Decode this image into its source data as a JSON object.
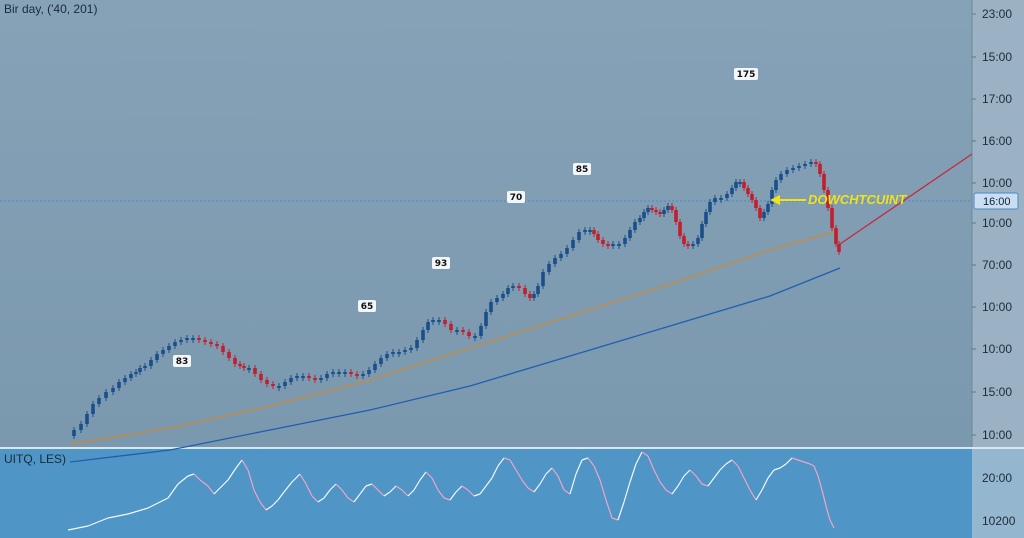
{
  "chart_data": [
    {
      "type": "candlestick",
      "title": "Bir day, ('40, 201)",
      "y_ticks": [
        "23:00",
        "15:00",
        "17:00",
        "16:00",
        "10:00",
        "10:00",
        "70:00",
        "10:00",
        "10:00",
        "15:00",
        "10:00"
      ],
      "current_price_label": "16:00",
      "callout": "DOWCHTCUINT",
      "peak_labels": [
        "83",
        "65",
        "93",
        "70",
        "85",
        "175"
      ],
      "price_path": [
        [
          0,
          8
        ],
        [
          8,
          14
        ],
        [
          14,
          20
        ],
        [
          20,
          30
        ],
        [
          26,
          40
        ],
        [
          32,
          46
        ],
        [
          40,
          52
        ],
        [
          46,
          56
        ],
        [
          52,
          62
        ],
        [
          58,
          66
        ],
        [
          64,
          70
        ],
        [
          68,
          72
        ],
        [
          72,
          76
        ],
        [
          78,
          78
        ],
        [
          84,
          84
        ],
        [
          90,
          90
        ],
        [
          96,
          94
        ],
        [
          102,
          98
        ],
        [
          108,
          102
        ],
        [
          114,
          104
        ],
        [
          120,
          106
        ],
        [
          126,
          106
        ],
        [
          132,
          104
        ],
        [
          138,
          102
        ],
        [
          144,
          100
        ],
        [
          150,
          98
        ],
        [
          156,
          92
        ],
        [
          162,
          86
        ],
        [
          168,
          80
        ],
        [
          172,
          78
        ],
        [
          176,
          76
        ],
        [
          182,
          76
        ],
        [
          188,
          70
        ],
        [
          194,
          64
        ],
        [
          200,
          60
        ],
        [
          206,
          58
        ],
        [
          212,
          58
        ],
        [
          218,
          62
        ],
        [
          224,
          66
        ],
        [
          230,
          68
        ],
        [
          236,
          68
        ],
        [
          242,
          66
        ],
        [
          248,
          64
        ],
        [
          254,
          66
        ],
        [
          260,
          70
        ],
        [
          266,
          72
        ],
        [
          272,
          72
        ],
        [
          278,
          72
        ],
        [
          284,
          70
        ],
        [
          290,
          68
        ],
        [
          296,
          70
        ],
        [
          302,
          74
        ],
        [
          308,
          80
        ],
        [
          314,
          86
        ],
        [
          320,
          90
        ],
        [
          326,
          92
        ],
        [
          332,
          92
        ],
        [
          338,
          94
        ],
        [
          344,
          96
        ],
        [
          350,
          104
        ],
        [
          356,
          114
        ],
        [
          360,
          122
        ],
        [
          366,
          124
        ],
        [
          372,
          124
        ],
        [
          378,
          120
        ],
        [
          384,
          114
        ],
        [
          390,
          114
        ],
        [
          396,
          112
        ],
        [
          402,
          108
        ],
        [
          408,
          108
        ],
        [
          414,
          118
        ],
        [
          418,
          132
        ],
        [
          424,
          142
        ],
        [
          430,
          146
        ],
        [
          436,
          150
        ],
        [
          440,
          156
        ],
        [
          446,
          158
        ],
        [
          452,
          156
        ],
        [
          458,
          150
        ],
        [
          462,
          146
        ],
        [
          466,
          150
        ],
        [
          470,
          158
        ],
        [
          476,
          172
        ],
        [
          482,
          180
        ],
        [
          488,
          186
        ],
        [
          494,
          190
        ],
        [
          500,
          196
        ],
        [
          506,
          204
        ],
        [
          512,
          212
        ],
        [
          518,
          214
        ],
        [
          522,
          214
        ],
        [
          526,
          210
        ],
        [
          530,
          204
        ],
        [
          536,
          200
        ],
        [
          540,
          198
        ],
        [
          546,
          200
        ],
        [
          552,
          200
        ],
        [
          558,
          206
        ],
        [
          562,
          214
        ],
        [
          568,
          222
        ],
        [
          572,
          226
        ],
        [
          576,
          232
        ],
        [
          580,
          236
        ],
        [
          584,
          234
        ],
        [
          588,
          232
        ],
        [
          592,
          230
        ],
        [
          596,
          234
        ],
        [
          600,
          238
        ],
        [
          604,
          234
        ],
        [
          608,
          222
        ],
        [
          612,
          208
        ],
        [
          616,
          200
        ],
        [
          620,
          198
        ],
        [
          626,
          200
        ],
        [
          630,
          206
        ],
        [
          634,
          220
        ],
        [
          638,
          232
        ],
        [
          642,
          242
        ],
        [
          648,
          246
        ],
        [
          654,
          246
        ],
        [
          660,
          250
        ],
        [
          664,
          256
        ],
        [
          668,
          262
        ],
        [
          672,
          262
        ],
        [
          676,
          256
        ],
        [
          680,
          250
        ],
        [
          684,
          244
        ],
        [
          688,
          236
        ],
        [
          692,
          226
        ],
        [
          696,
          232
        ],
        [
          700,
          240
        ],
        [
          704,
          254
        ],
        [
          708,
          264
        ],
        [
          714,
          270
        ],
        [
          720,
          274
        ],
        [
          726,
          276
        ],
        [
          732,
          278
        ],
        [
          738,
          280
        ],
        [
          744,
          282
        ],
        [
          748,
          280
        ],
        [
          752,
          270
        ],
        [
          756,
          254
        ],
        [
          760,
          236
        ],
        [
          764,
          216
        ],
        [
          768,
          200
        ],
        [
          770,
          192
        ]
      ],
      "ma_orange": [
        [
          0,
          0
        ],
        [
          100,
          16
        ],
        [
          200,
          38
        ],
        [
          300,
          64
        ],
        [
          400,
          96
        ],
        [
          500,
          128
        ],
        [
          600,
          160
        ],
        [
          700,
          194
        ],
        [
          770,
          214
        ]
      ],
      "ma_blue": [
        [
          0,
          -18
        ],
        [
          100,
          -6
        ],
        [
          200,
          14
        ],
        [
          300,
          34
        ],
        [
          400,
          58
        ],
        [
          500,
          88
        ],
        [
          600,
          118
        ],
        [
          700,
          148
        ],
        [
          770,
          176
        ]
      ],
      "trendline_red": [
        [
          770,
          200
        ],
        [
          972,
          290
        ]
      ],
      "oscillator": {
        "label": "UITQ, LES)",
        "y_ticks": [
          "20:00",
          "10200"
        ],
        "path": [
          [
            0,
            0
          ],
          [
            20,
            4
          ],
          [
            40,
            12
          ],
          [
            60,
            16
          ],
          [
            80,
            22
          ],
          [
            100,
            32
          ],
          [
            110,
            46
          ],
          [
            120,
            54
          ],
          [
            126,
            56
          ],
          [
            132,
            50
          ],
          [
            140,
            44
          ],
          [
            146,
            36
          ],
          [
            152,
            42
          ],
          [
            160,
            50
          ],
          [
            168,
            62
          ],
          [
            174,
            70
          ],
          [
            180,
            60
          ],
          [
            186,
            40
          ],
          [
            192,
            28
          ],
          [
            198,
            20
          ],
          [
            204,
            24
          ],
          [
            210,
            30
          ],
          [
            216,
            38
          ],
          [
            224,
            48
          ],
          [
            232,
            56
          ],
          [
            238,
            46
          ],
          [
            244,
            34
          ],
          [
            250,
            28
          ],
          [
            256,
            32
          ],
          [
            262,
            40
          ],
          [
            268,
            46
          ],
          [
            274,
            40
          ],
          [
            280,
            32
          ],
          [
            286,
            28
          ],
          [
            292,
            36
          ],
          [
            298,
            44
          ],
          [
            304,
            46
          ],
          [
            310,
            40
          ],
          [
            316,
            34
          ],
          [
            322,
            38
          ],
          [
            328,
            44
          ],
          [
            334,
            40
          ],
          [
            340,
            34
          ],
          [
            346,
            40
          ],
          [
            352,
            50
          ],
          [
            358,
            58
          ],
          [
            364,
            52
          ],
          [
            370,
            40
          ],
          [
            376,
            32
          ],
          [
            382,
            30
          ],
          [
            388,
            38
          ],
          [
            394,
            44
          ],
          [
            400,
            40
          ],
          [
            406,
            34
          ],
          [
            412,
            36
          ],
          [
            418,
            44
          ],
          [
            424,
            52
          ],
          [
            430,
            64
          ],
          [
            436,
            72
          ],
          [
            442,
            70
          ],
          [
            448,
            60
          ],
          [
            454,
            50
          ],
          [
            460,
            42
          ],
          [
            466,
            38
          ],
          [
            472,
            46
          ],
          [
            478,
            56
          ],
          [
            484,
            62
          ],
          [
            490,
            54
          ],
          [
            496,
            40
          ],
          [
            502,
            36
          ],
          [
            508,
            56
          ],
          [
            514,
            70
          ],
          [
            520,
            72
          ],
          [
            526,
            64
          ],
          [
            532,
            50
          ],
          [
            538,
            30
          ],
          [
            544,
            12
          ],
          [
            550,
            10
          ],
          [
            556,
            28
          ],
          [
            562,
            48
          ],
          [
            568,
            66
          ],
          [
            574,
            78
          ],
          [
            580,
            74
          ],
          [
            586,
            60
          ],
          [
            592,
            48
          ],
          [
            598,
            40
          ],
          [
            604,
            36
          ],
          [
            610,
            44
          ],
          [
            616,
            54
          ],
          [
            622,
            60
          ],
          [
            628,
            54
          ],
          [
            634,
            46
          ],
          [
            640,
            44
          ],
          [
            646,
            52
          ],
          [
            652,
            60
          ],
          [
            658,
            66
          ],
          [
            664,
            70
          ],
          [
            670,
            64
          ],
          [
            676,
            52
          ],
          [
            682,
            40
          ],
          [
            688,
            30
          ],
          [
            694,
            40
          ],
          [
            700,
            52
          ],
          [
            706,
            60
          ],
          [
            712,
            62
          ],
          [
            718,
            66
          ],
          [
            724,
            72
          ],
          [
            730,
            70
          ],
          [
            736,
            68
          ],
          [
            742,
            66
          ],
          [
            746,
            64
          ],
          [
            750,
            54
          ],
          [
            754,
            40
          ],
          [
            758,
            24
          ],
          [
            762,
            10
          ],
          [
            766,
            2
          ]
        ]
      }
    }
  ]
}
